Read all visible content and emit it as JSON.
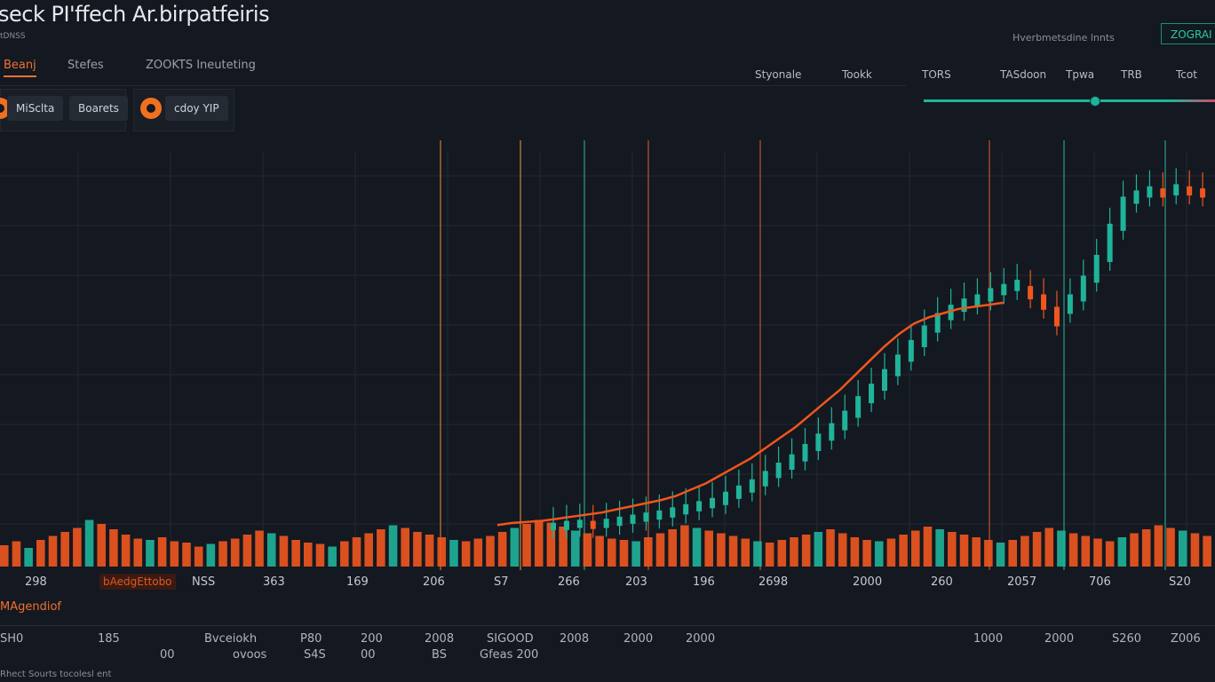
{
  "header": {
    "title": "seck PI'ffech Ar.birpatfeiris",
    "subtitle": "tDNSS",
    "right_text": "Hverbmetsdine lnnts",
    "button_label": "ZOGRAI"
  },
  "nav": {
    "tabs": [
      {
        "label": "Beanj",
        "active": true
      },
      {
        "label": "Stefes",
        "active": false
      },
      {
        "label": "ZOOKTS Ineuteting",
        "active": false
      }
    ]
  },
  "range_tabs": [
    "Styonale",
    "Tookk",
    "TORS",
    "TASdoon",
    "Tpwa",
    "TRB",
    "Tcot"
  ],
  "controls": {
    "pill_1": "MiSclta",
    "pill_2": "Boarets",
    "pill_3": "cdoy YIP"
  },
  "colors": {
    "background": "#141820",
    "up": "#1fb49a",
    "down": "#f0561e",
    "accent": "#f07030",
    "grid": "#222833"
  },
  "chart_data": {
    "type": "bar",
    "title": "",
    "x_tick_labels": [
      "298",
      "NSS",
      "363",
      "169",
      "206",
      "S7",
      "266",
      "203",
      "196",
      "2698",
      "2000",
      "260",
      "2057",
      "706",
      "S20"
    ],
    "x_orange_label": "bAedgEttobo",
    "volume_values": [
      32,
      38,
      28,
      40,
      46,
      52,
      58,
      70,
      64,
      56,
      48,
      42,
      40,
      44,
      38,
      36,
      30,
      34,
      38,
      42,
      48,
      54,
      50,
      46,
      40,
      36,
      34,
      30,
      38,
      44,
      50,
      56,
      62,
      58,
      52,
      48,
      44,
      40,
      38,
      42,
      46,
      52,
      58,
      64,
      70,
      66,
      60,
      54,
      50,
      46,
      42,
      40,
      38,
      44,
      50,
      56,
      62,
      58,
      54,
      50,
      46,
      42,
      38,
      36,
      40,
      44,
      48,
      52,
      56,
      50,
      44,
      40,
      38,
      42,
      48,
      54,
      60,
      56,
      52,
      48,
      44,
      40,
      36,
      40,
      46,
      52,
      58,
      54,
      50,
      46,
      42,
      38,
      44,
      50,
      56,
      62,
      58,
      54,
      50,
      46
    ],
    "price_values": [
      42,
      44,
      45,
      44,
      46,
      48,
      50,
      52,
      54,
      57,
      60,
      63,
      66,
      72,
      78,
      84,
      92,
      100,
      108,
      118,
      128,
      138,
      150,
      164,
      176,
      190,
      204,
      218,
      232,
      244,
      252,
      258,
      262,
      268,
      272,
      276,
      270,
      262,
      250,
      262,
      280,
      300,
      330,
      356,
      362,
      366,
      364,
      368,
      366,
      364
    ],
    "trend_values": [
      40,
      42,
      43,
      44,
      46,
      48,
      50,
      52,
      55,
      58,
      61,
      64,
      68,
      74,
      80,
      88,
      96,
      104,
      114,
      124,
      134,
      146,
      158,
      170,
      184,
      198,
      212,
      224,
      234,
      240,
      244,
      248,
      250,
      252,
      254
    ],
    "section_label": "MAgendiof",
    "bottom_ticks_row1": [
      "SH0",
      "185",
      "Bvceiokh",
      "P80",
      "200",
      "2008",
      "SIGOOD",
      "2008",
      "2000",
      "2000",
      "1000",
      "2000",
      "S260",
      "Z006"
    ],
    "bottom_ticks_row2": [
      "00",
      "ovoos",
      "S4S",
      "00",
      "BS",
      "Gfeas 200"
    ],
    "footer": "Rhect Sourts tocolesl ent",
    "ylim": [
      0,
      400
    ],
    "grid": true
  }
}
